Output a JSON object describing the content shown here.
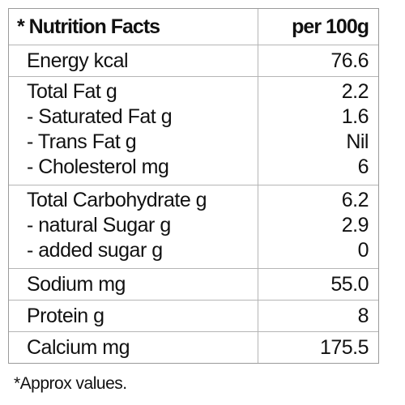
{
  "header": {
    "title": "* Nutrition Facts",
    "per": "per 100g"
  },
  "rows": [
    {
      "items": [
        {
          "label": "Energy kcal",
          "value": "76.6"
        }
      ]
    },
    {
      "items": [
        {
          "label": "Total Fat g",
          "value": "2.2"
        },
        {
          "label": "- Saturated Fat g",
          "value": "1.6"
        },
        {
          "label": "- Trans Fat g",
          "value": "Nil"
        },
        {
          "label": "- Cholesterol mg",
          "value": "6"
        }
      ]
    },
    {
      "items": [
        {
          "label": "Total Carbohydrate  g",
          "value": "6.2"
        },
        {
          "label": "- natural Sugar g",
          "value": "2.9"
        },
        {
          "label": "- added sugar g",
          "value": "0"
        }
      ]
    },
    {
      "items": [
        {
          "label": "Sodium mg",
          "value": "55.0"
        }
      ]
    },
    {
      "items": [
        {
          "label": "Protein g",
          "value": "8"
        }
      ]
    },
    {
      "items": [
        {
          "label": "Calcium mg",
          "value": "175.5"
        }
      ]
    }
  ],
  "footnote": "*Approx values."
}
